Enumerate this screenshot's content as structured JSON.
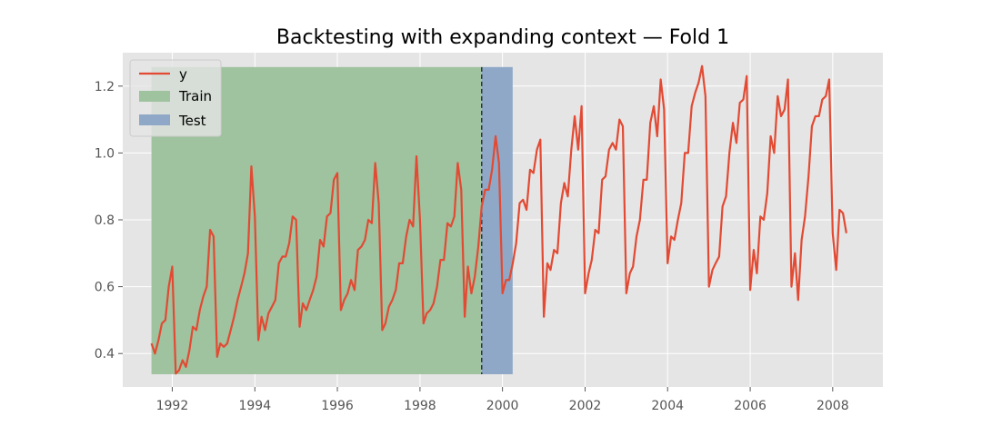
{
  "chart_data": {
    "type": "line",
    "title": "Backtesting with expanding context — Fold 1",
    "xlabel": "",
    "ylabel": "",
    "xlim": [
      "1990-10-20",
      "2009-03-20"
    ],
    "ylim": [
      0.3,
      1.3
    ],
    "x_ticks": [
      "1992",
      "1994",
      "1996",
      "1998",
      "2000",
      "2002",
      "2004",
      "2006",
      "2008"
    ],
    "y_ticks": [
      "0.4",
      "0.6",
      "0.8",
      "1.0",
      "1.2"
    ],
    "grid": true,
    "legend_position": "top-left",
    "colors": {
      "y": "#E24A33",
      "train": "#9FC29F",
      "test": "#8FA8C8",
      "background": "#E5E5E5",
      "grid": "#FFFFFF",
      "split_line": "#333333"
    },
    "regions": [
      {
        "name": "Train",
        "start": "1991-07-01",
        "end": "1999-06-30",
        "y_range": [
          0.338,
          1.257
        ]
      },
      {
        "name": "Test",
        "start": "1999-07-01",
        "end": "2000-03-31",
        "y_range": [
          0.338,
          1.257
        ]
      }
    ],
    "split_date": "1999-07-01",
    "series": [
      {
        "name": "y",
        "start": "1991-07",
        "frequency": "monthly",
        "values": [
          0.43,
          0.4,
          0.44,
          0.49,
          0.5,
          0.6,
          0.66,
          0.34,
          0.35,
          0.38,
          0.36,
          0.41,
          0.48,
          0.47,
          0.53,
          0.57,
          0.6,
          0.77,
          0.75,
          0.39,
          0.43,
          0.42,
          0.43,
          0.47,
          0.51,
          0.56,
          0.6,
          0.64,
          0.7,
          0.96,
          0.81,
          0.44,
          0.51,
          0.47,
          0.52,
          0.54,
          0.56,
          0.67,
          0.69,
          0.69,
          0.73,
          0.81,
          0.8,
          0.48,
          0.55,
          0.53,
          0.56,
          0.59,
          0.63,
          0.74,
          0.72,
          0.81,
          0.82,
          0.92,
          0.94,
          0.53,
          0.56,
          0.58,
          0.62,
          0.59,
          0.71,
          0.72,
          0.74,
          0.8,
          0.79,
          0.97,
          0.85,
          0.47,
          0.49,
          0.54,
          0.56,
          0.59,
          0.67,
          0.67,
          0.75,
          0.8,
          0.78,
          0.99,
          0.8,
          0.49,
          0.52,
          0.53,
          0.55,
          0.6,
          0.68,
          0.68,
          0.79,
          0.78,
          0.81,
          0.97,
          0.89,
          0.51,
          0.66,
          0.58,
          0.63,
          0.72,
          0.84,
          0.89,
          0.89,
          0.95,
          1.05,
          0.97,
          0.58,
          0.62,
          0.62,
          0.67,
          0.73,
          0.85,
          0.86,
          0.83,
          0.95,
          0.94,
          1.01,
          1.04,
          0.51,
          0.67,
          0.65,
          0.71,
          0.7,
          0.85,
          0.91,
          0.87,
          1.01,
          1.11,
          1.01,
          1.14,
          0.58,
          0.64,
          0.68,
          0.77,
          0.76,
          0.92,
          0.93,
          1.01,
          1.03,
          1.01,
          1.1,
          1.08,
          0.58,
          0.64,
          0.66,
          0.75,
          0.8,
          0.92,
          0.92,
          1.09,
          1.14,
          1.05,
          1.22,
          1.13,
          0.67,
          0.75,
          0.74,
          0.8,
          0.85,
          1.0,
          1.0,
          1.14,
          1.18,
          1.21,
          1.26,
          1.17,
          0.6,
          0.65,
          0.67,
          0.69,
          0.84,
          0.87,
          1.0,
          1.09,
          1.03,
          1.15,
          1.16,
          1.23,
          0.59,
          0.71,
          0.64,
          0.81,
          0.8,
          0.88,
          1.05,
          1.0,
          1.17,
          1.11,
          1.13,
          1.22,
          0.6,
          0.7,
          0.56,
          0.74,
          0.81,
          0.93,
          1.08,
          1.11,
          1.11,
          1.16,
          1.17,
          1.22,
          0.76,
          0.65,
          0.83,
          0.82,
          0.76
        ]
      }
    ]
  }
}
